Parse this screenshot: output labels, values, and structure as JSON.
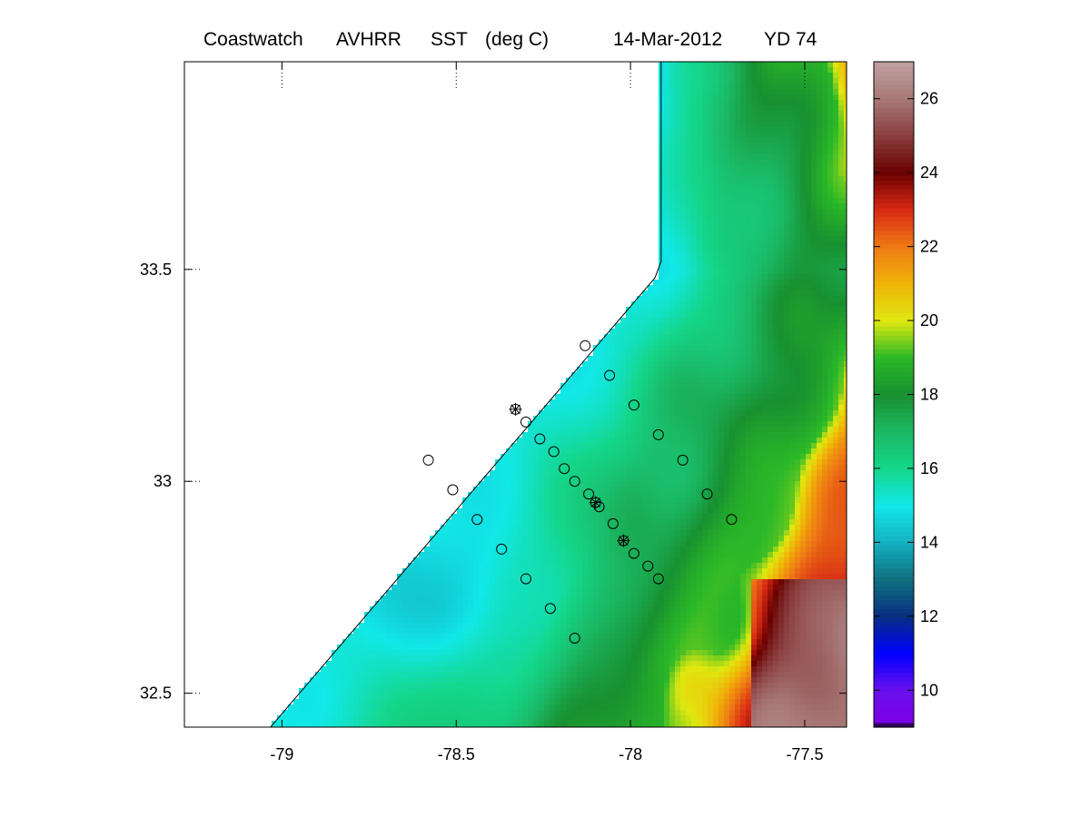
{
  "title": {
    "source": "Coastwatch",
    "sensor": "AVHRR",
    "product": "SST",
    "units": "(deg C)",
    "date": "14-Mar-2012",
    "yearday": "YD 74"
  },
  "map": {
    "lon_range": [
      -79.28,
      -77.38
    ],
    "lat_range": [
      32.42,
      33.99
    ],
    "lon_ticks": [
      {
        "value": -79,
        "label": "-79"
      },
      {
        "value": -78.5,
        "label": "-78.5"
      },
      {
        "value": -78,
        "label": "-78"
      },
      {
        "value": -77.5,
        "label": "-77.5"
      }
    ],
    "lat_ticks": [
      {
        "value": 33.5,
        "label": "33.5"
      },
      {
        "value": 33,
        "label": "33"
      },
      {
        "value": 32.5,
        "label": "32.5"
      }
    ],
    "land_color": "#ffffff",
    "coast_color": "#000000"
  },
  "colorbar": {
    "range": [
      9,
      27
    ],
    "ticks": [
      {
        "value": 10,
        "label": "10"
      },
      {
        "value": 12,
        "label": "12"
      },
      {
        "value": 14,
        "label": "14"
      },
      {
        "value": 16,
        "label": "16"
      },
      {
        "value": 18,
        "label": "18"
      },
      {
        "value": 20,
        "label": "20"
      },
      {
        "value": 22,
        "label": "22"
      },
      {
        "value": 24,
        "label": "24"
      },
      {
        "value": 26,
        "label": "26"
      }
    ],
    "colormap": [
      [
        9.0,
        "#000000"
      ],
      [
        9.15,
        "#7a00e6"
      ],
      [
        10.0,
        "#6a10ee"
      ],
      [
        11.0,
        "#0000ff"
      ],
      [
        12.0,
        "#082e80"
      ],
      [
        13.0,
        "#0f7080"
      ],
      [
        14.0,
        "#13b0c0"
      ],
      [
        15.0,
        "#12e8e8"
      ],
      [
        16.0,
        "#14d68a"
      ],
      [
        17.0,
        "#1bb864"
      ],
      [
        18.0,
        "#189030"
      ],
      [
        19.0,
        "#2ab828"
      ],
      [
        20.0,
        "#e0e810"
      ],
      [
        21.0,
        "#f0b408"
      ],
      [
        22.0,
        "#ee7a14"
      ],
      [
        23.0,
        "#d82a14"
      ],
      [
        24.0,
        "#6a0000"
      ],
      [
        25.0,
        "#8a3e3e"
      ],
      [
        26.0,
        "#a87878"
      ],
      [
        27.0,
        "#c0a0a0"
      ]
    ]
  },
  "stations": {
    "circles": [
      [
        -78.33,
        33.17
      ],
      [
        -78.3,
        33.14
      ],
      [
        -78.26,
        33.1
      ],
      [
        -78.22,
        33.07
      ],
      [
        -78.19,
        33.03
      ],
      [
        -78.16,
        33.0
      ],
      [
        -78.12,
        32.97
      ],
      [
        -78.1,
        32.95
      ],
      [
        -78.09,
        32.94
      ],
      [
        -78.05,
        32.9
      ],
      [
        -78.02,
        32.86
      ],
      [
        -77.99,
        32.83
      ],
      [
        -77.95,
        32.8
      ],
      [
        -77.92,
        32.77
      ],
      [
        -78.13,
        33.32
      ],
      [
        -78.06,
        33.25
      ],
      [
        -77.99,
        33.18
      ],
      [
        -77.92,
        33.11
      ],
      [
        -77.85,
        33.05
      ],
      [
        -77.78,
        32.97
      ],
      [
        -77.71,
        32.91
      ],
      [
        -78.58,
        33.05
      ],
      [
        -78.51,
        32.98
      ],
      [
        -78.44,
        32.91
      ],
      [
        -78.37,
        32.84
      ],
      [
        -78.3,
        32.77
      ],
      [
        -78.23,
        32.7
      ],
      [
        -78.16,
        32.63
      ]
    ],
    "marked": [
      [
        -78.33,
        33.17
      ],
      [
        -78.1,
        32.95
      ],
      [
        -78.02,
        32.86
      ]
    ]
  }
}
